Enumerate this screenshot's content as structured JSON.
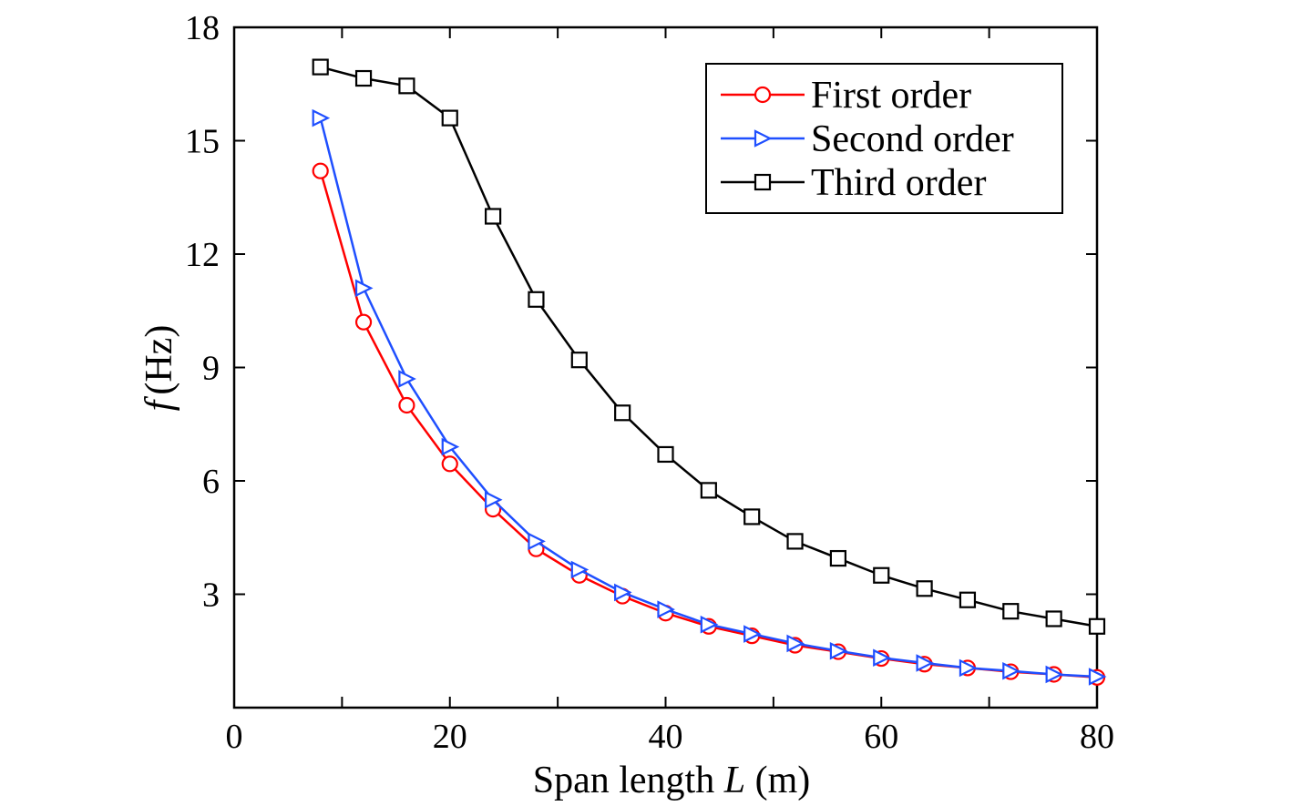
{
  "chart_data": {
    "type": "line",
    "xlabel": "Span length L (m)",
    "xlabel_parts": {
      "prefix": "Span length ",
      "var": "L",
      "suffix": " (m)"
    },
    "ylabel": "f (Hz)",
    "ylabel_parts": {
      "var": "f",
      "suffix": "(Hz)"
    },
    "xlim": [
      0,
      80
    ],
    "ylim": [
      0,
      18
    ],
    "xticks": [
      0,
      20,
      40,
      60,
      80
    ],
    "xtick_labels": [
      "0",
      "20",
      "40",
      "60",
      "80"
    ],
    "yticks": [
      3,
      6,
      9,
      12,
      15,
      18
    ],
    "ytick_labels": [
      "3",
      "6",
      "9",
      "12",
      "15",
      "18"
    ],
    "grid": false,
    "legend_position": "top-right",
    "x": [
      8,
      12,
      16,
      20,
      24,
      28,
      32,
      36,
      40,
      44,
      48,
      52,
      56,
      60,
      64,
      68,
      72,
      76,
      80
    ],
    "series": [
      {
        "name": "First order",
        "color": "#ff0000",
        "marker": "circle",
        "values": [
          14.2,
          10.2,
          8.0,
          6.45,
          5.25,
          4.2,
          3.5,
          2.95,
          2.5,
          2.15,
          1.9,
          1.65,
          1.48,
          1.3,
          1.15,
          1.05,
          0.95,
          0.88,
          0.8
        ]
      },
      {
        "name": "Second order",
        "color": "#1f4fff",
        "marker": "triangle-right",
        "values": [
          15.6,
          11.1,
          8.7,
          6.9,
          5.5,
          4.4,
          3.65,
          3.05,
          2.6,
          2.2,
          1.95,
          1.7,
          1.5,
          1.32,
          1.18,
          1.05,
          0.97,
          0.88,
          0.82
        ]
      },
      {
        "name": "Third order",
        "color": "#000000",
        "marker": "square",
        "values": [
          16.95,
          16.65,
          16.45,
          15.6,
          13.0,
          10.8,
          9.2,
          7.8,
          6.7,
          5.75,
          5.05,
          4.4,
          3.95,
          3.5,
          3.15,
          2.85,
          2.55,
          2.35,
          2.15
        ]
      }
    ]
  }
}
